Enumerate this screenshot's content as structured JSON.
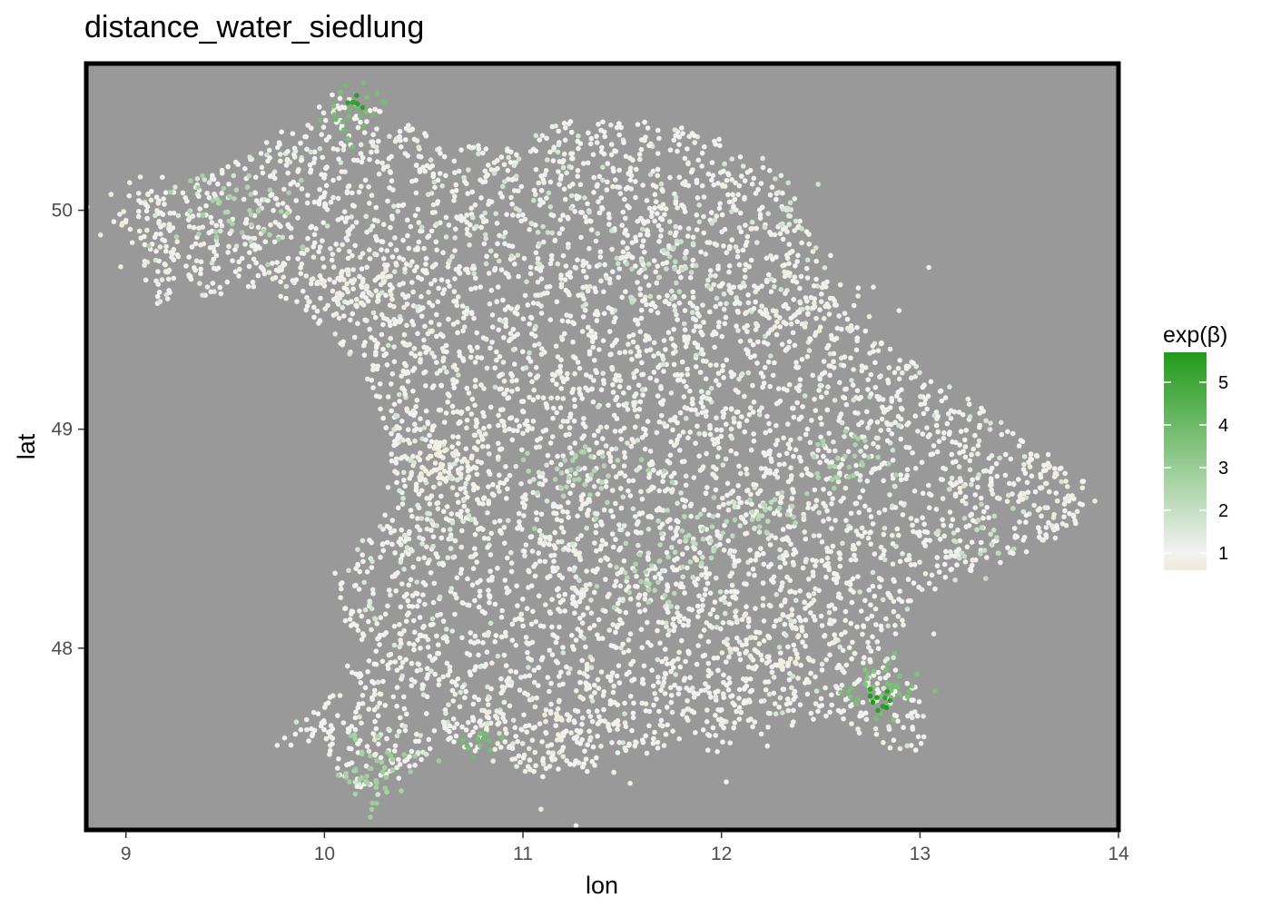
{
  "chart_data": {
    "type": "scatter",
    "title": "distance_water_siedlung",
    "xlabel": "lon",
    "ylabel": "lat",
    "xlim": [
      8.8,
      14.0
    ],
    "ylim": [
      47.17,
      50.67
    ],
    "x_ticks": [
      "9",
      "10",
      "11",
      "12",
      "13",
      "14"
    ],
    "y_ticks": [
      "48",
      "49",
      "50"
    ],
    "grid": false,
    "panel_background": "#999999",
    "legend": {
      "title": "exp(β)",
      "position": "right",
      "range": [
        0.6,
        5.7
      ],
      "ticks": [
        "1",
        "2",
        "3",
        "4",
        "5"
      ],
      "colors": {
        "low": "#EEEBD6",
        "mid": "#F2F2F2",
        "high": "#229A1A"
      }
    },
    "clusters": [
      {
        "lon": 10.6,
        "lat": 48.85,
        "r": 0.12,
        "value": 0.8,
        "n": 70
      },
      {
        "lon": 10.05,
        "lat": 49.65,
        "r": 0.15,
        "value": 0.75,
        "n": 60
      },
      {
        "lon": 9.15,
        "lat": 49.95,
        "r": 0.15,
        "value": 0.8,
        "n": 50
      },
      {
        "lon": 9.6,
        "lat": 50.0,
        "r": 0.15,
        "value": 2.6,
        "n": 45
      },
      {
        "lon": 10.15,
        "lat": 50.45,
        "r": 0.08,
        "value": 3.8,
        "n": 22
      },
      {
        "lon": 10.15,
        "lat": 50.5,
        "r": 0.03,
        "value": 5.4,
        "n": 6
      },
      {
        "lon": 12.8,
        "lat": 47.8,
        "r": 0.09,
        "value": 3.6,
        "n": 40
      },
      {
        "lon": 12.78,
        "lat": 47.77,
        "r": 0.04,
        "value": 5.5,
        "n": 10
      },
      {
        "lon": 10.25,
        "lat": 47.45,
        "r": 0.12,
        "value": 2.8,
        "n": 45
      },
      {
        "lon": 10.8,
        "lat": 47.58,
        "r": 0.05,
        "value": 3.8,
        "n": 14
      },
      {
        "lon": 11.3,
        "lat": 48.8,
        "r": 0.15,
        "value": 2.4,
        "n": 40
      },
      {
        "lon": 12.65,
        "lat": 48.85,
        "r": 0.1,
        "value": 2.6,
        "n": 30
      },
      {
        "lon": 12.2,
        "lat": 48.6,
        "r": 0.1,
        "value": 2.3,
        "n": 25
      },
      {
        "lon": 11.6,
        "lat": 48.3,
        "r": 0.1,
        "value": 2.4,
        "n": 25
      },
      {
        "lon": 11.85,
        "lat": 48.5,
        "r": 0.1,
        "value": 2.2,
        "n": 25
      },
      {
        "lon": 11.7,
        "lat": 49.75,
        "r": 0.12,
        "value": 2.0,
        "n": 30
      },
      {
        "lon": 11.2,
        "lat": 47.6,
        "r": 0.2,
        "value": 0.8,
        "n": 70
      },
      {
        "lon": 12.4,
        "lat": 49.5,
        "r": 0.2,
        "value": 0.8,
        "n": 60
      },
      {
        "lon": 12.3,
        "lat": 48.0,
        "r": 0.2,
        "value": 0.8,
        "n": 60
      },
      {
        "lon": 13.3,
        "lat": 48.5,
        "r": 0.1,
        "value": 2.0,
        "n": 20
      },
      {
        "lon": 13.6,
        "lat": 48.75,
        "r": 0.15,
        "value": 0.8,
        "n": 35
      },
      {
        "lon": 12.3,
        "lat": 50.0,
        "r": 0.15,
        "value": 1.6,
        "n": 20
      },
      {
        "lon": 11.0,
        "lat": 49.95,
        "r": 0.2,
        "value": 1.7,
        "n": 30
      },
      {
        "lon": 10.55,
        "lat": 48.6,
        "r": 0.15,
        "value": 1.6,
        "n": 25
      },
      {
        "lon": 11.9,
        "lat": 47.7,
        "r": 0.15,
        "value": 1.0,
        "n": 30
      },
      {
        "lon": 10.4,
        "lat": 49.4,
        "r": 0.15,
        "value": 0.9,
        "n": 35
      }
    ]
  }
}
